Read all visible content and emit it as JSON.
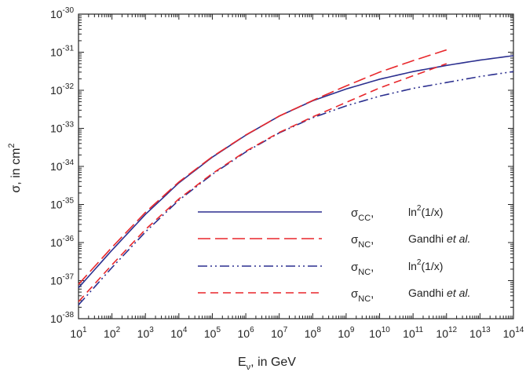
{
  "chart_data": {
    "type": "line",
    "xscale": "log",
    "yscale": "log",
    "xlim": [
      10,
      100000000000000.0
    ],
    "ylim": [
      1e-38,
      1e-30
    ],
    "x_ticks": [
      {
        "v": 10.0,
        "base": "10",
        "exp": "1"
      },
      {
        "v": 100.0,
        "base": "10",
        "exp": "2"
      },
      {
        "v": 1000.0,
        "base": "10",
        "exp": "3"
      },
      {
        "v": 10000.0,
        "base": "10",
        "exp": "4"
      },
      {
        "v": 100000.0,
        "base": "10",
        "exp": "5"
      },
      {
        "v": 1000000.0,
        "base": "10",
        "exp": "6"
      },
      {
        "v": 10000000.0,
        "base": "10",
        "exp": "7"
      },
      {
        "v": 100000000.0,
        "base": "10",
        "exp": "8"
      },
      {
        "v": 1000000000.0,
        "base": "10",
        "exp": "9"
      },
      {
        "v": 10000000000.0,
        "base": "10",
        "exp": "10"
      },
      {
        "v": 100000000000.0,
        "base": "10",
        "exp": "11"
      },
      {
        "v": 1000000000000.0,
        "base": "10",
        "exp": "12"
      },
      {
        "v": 10000000000000.0,
        "base": "10",
        "exp": "13"
      },
      {
        "v": 100000000000000.0,
        "base": "10",
        "exp": "14"
      }
    ],
    "y_ticks": [
      {
        "v": 1e-38,
        "base": "10",
        "exp": "-38"
      },
      {
        "v": 1e-37,
        "base": "10",
        "exp": "-37"
      },
      {
        "v": 1e-36,
        "base": "10",
        "exp": "-36"
      },
      {
        "v": 1e-35,
        "base": "10",
        "exp": "-35"
      },
      {
        "v": 1e-34,
        "base": "10",
        "exp": "-34"
      },
      {
        "v": 1e-33,
        "base": "10",
        "exp": "-33"
      },
      {
        "v": 1e-32,
        "base": "10",
        "exp": "-32"
      },
      {
        "v": 1e-31,
        "base": "10",
        "exp": "-31"
      },
      {
        "v": 1e-30,
        "base": "10",
        "exp": "-30"
      }
    ],
    "xlabel": {
      "main": "E",
      "sub": "ν",
      "rest": ", in GeV"
    },
    "ylabel": {
      "main": "σ, in cm",
      "sup": "2"
    },
    "legend_position": "lower-right",
    "series": [
      {
        "id": "s1",
        "color": "#2b2f8f",
        "dash": "solid",
        "legend": {
          "sym": "σ",
          "sub": "CC",
          "sep": ",",
          "text": "ln",
          "sup": "2",
          "rest": "(1/x)",
          "italic": ""
        },
        "x": [
          10,
          100,
          1000,
          10000.0,
          100000.0,
          1000000.0,
          10000000.0,
          100000000.0,
          1000000000.0,
          10000000000.0,
          100000000000.0,
          1000000000000.0,
          10000000000000.0,
          100000000000000.0
        ],
        "y": [
          6.5e-38,
          6.3e-37,
          5.5e-36,
          3.7e-35,
          1.75e-34,
          6.6e-34,
          2.1e-33,
          5.3e-33,
          1.08e-32,
          1.95e-32,
          3.1e-32,
          4.5e-32,
          6.2e-32,
          8.1e-32
        ]
      },
      {
        "id": "s2",
        "color": "#e8272b",
        "dash": "long",
        "legend": {
          "sym": "σ",
          "sub": "NC",
          "sep": ",",
          "text": "Gandhi ",
          "sup": "",
          "rest": "",
          "italic": "et al."
        },
        "x": [
          10,
          100,
          1000,
          10000.0,
          100000.0,
          1000000.0,
          10000000.0,
          100000000.0,
          1000000000.0,
          10000000000.0,
          100000000000.0,
          1000000000000.0
        ],
        "y": [
          8e-38,
          7.5e-37,
          6.2e-36,
          3.9e-35,
          1.8e-34,
          6.7e-34,
          2.1e-33,
          5.4e-33,
          1.3e-32,
          3e-32,
          6e-32,
          1.15e-31
        ]
      },
      {
        "id": "s3",
        "color": "#2b2f8f",
        "dash": "dashdotdot",
        "legend": {
          "sym": "σ",
          "sub": "NC",
          "sep": ",",
          "text": "ln",
          "sup": "2",
          "rest": "(1/x)",
          "italic": ""
        },
        "x": [
          10,
          100,
          1000,
          10000.0,
          100000.0,
          1000000.0,
          10000000.0,
          100000000.0,
          1000000000.0,
          10000000000.0,
          100000000000.0,
          1000000000000.0,
          10000000000000.0,
          100000000000000.0
        ],
        "y": [
          2.3e-38,
          2.2e-37,
          1.9e-36,
          1.3e-35,
          6.2e-35,
          2.4e-34,
          7.6e-34,
          1.9e-33,
          3.9e-33,
          7e-33,
          1.12e-32,
          1.6e-32,
          2.3e-32,
          3.1e-32
        ]
      },
      {
        "id": "s4",
        "color": "#e8272b",
        "dash": "short",
        "legend": {
          "sym": "σ",
          "sub": "NC",
          "sep": ",",
          "text": "Gandhi ",
          "sup": "",
          "rest": "",
          "italic": "et al."
        },
        "x": [
          10,
          100,
          1000,
          10000.0,
          100000.0,
          1000000.0,
          10000000.0,
          100000000.0,
          1000000000.0,
          10000000000.0,
          100000000000.0,
          1000000000000.0
        ],
        "y": [
          2.8e-38,
          2.6e-37,
          2.2e-36,
          1.4e-35,
          6.5e-35,
          2.5e-34,
          7.8e-34,
          2e-33,
          4.8e-33,
          1.15e-32,
          2.4e-32,
          5e-32
        ]
      }
    ]
  }
}
